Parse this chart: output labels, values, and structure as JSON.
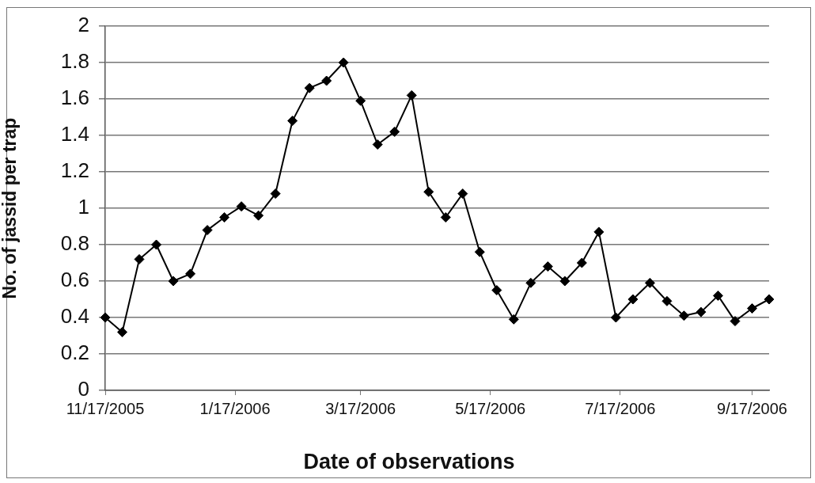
{
  "chart_data": {
    "type": "line",
    "xlabel": "Date of observations",
    "ylabel": "No. of jassid per trap",
    "x": [
      "2005-11-17",
      "2005-11-25",
      "2005-12-03",
      "2005-12-11",
      "2005-12-19",
      "2005-12-27",
      "2006-01-04",
      "2006-01-12",
      "2006-01-20",
      "2006-01-28",
      "2006-02-05",
      "2006-02-13",
      "2006-02-21",
      "2006-03-01",
      "2006-03-09",
      "2006-03-17",
      "2006-03-25",
      "2006-04-02",
      "2006-04-10",
      "2006-04-18",
      "2006-04-26",
      "2006-05-04",
      "2006-05-12",
      "2006-05-20",
      "2006-05-28",
      "2006-06-05",
      "2006-06-13",
      "2006-06-21",
      "2006-06-29",
      "2006-07-07",
      "2006-07-15",
      "2006-07-23",
      "2006-07-31",
      "2006-08-08",
      "2006-08-16",
      "2006-08-24",
      "2006-09-01",
      "2006-09-09",
      "2006-09-17",
      "2006-09-25"
    ],
    "values": [
      0.4,
      0.32,
      0.72,
      0.8,
      0.6,
      0.64,
      0.88,
      0.95,
      1.01,
      0.96,
      1.08,
      1.48,
      1.66,
      1.7,
      1.8,
      1.59,
      1.35,
      1.42,
      1.62,
      1.09,
      0.95,
      1.08,
      0.76,
      0.55,
      0.39,
      0.59,
      0.68,
      0.6,
      0.7,
      0.87,
      0.4,
      0.5,
      0.59,
      0.49,
      0.41,
      0.43,
      0.52,
      0.38,
      0.45,
      0.5
    ],
    "color": "#000000",
    "xlim": [
      "2005-11-17",
      "2006-09-25"
    ],
    "xticks": [
      {
        "value": "2005-11-17",
        "label": "11/17/2005"
      },
      {
        "value": "2006-01-17",
        "label": "1/17/2006"
      },
      {
        "value": "2006-03-17",
        "label": "3/17/2006"
      },
      {
        "value": "2006-05-17",
        "label": "5/17/2006"
      },
      {
        "value": "2006-07-17",
        "label": "7/17/2006"
      },
      {
        "value": "2006-09-17",
        "label": "9/17/2006"
      }
    ],
    "ylim": [
      0,
      2
    ],
    "yticks": [
      0,
      0.2,
      0.4,
      0.6,
      0.8,
      1,
      1.2,
      1.4,
      1.6,
      1.8,
      2
    ],
    "grid": "y",
    "marker": "diamond",
    "line_style": "solid"
  }
}
